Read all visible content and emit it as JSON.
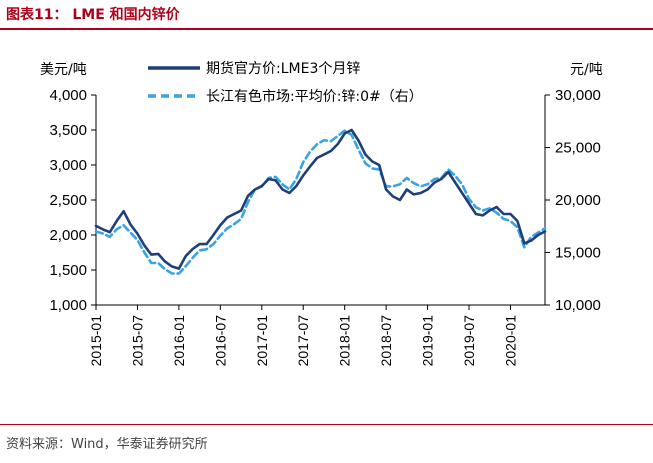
{
  "header": {
    "title": "图表11：  LME 和国内锌价"
  },
  "footer": {
    "source": "资料来源：Wind，华泰证券研究所"
  },
  "chart_data": {
    "type": "line",
    "title": "LME 和国内锌价",
    "left_unit": "美元/吨",
    "right_unit": "元/吨",
    "left_axis": {
      "min": 1000,
      "max": 4000,
      "ticks": [
        "1,000",
        "1,500",
        "2,000",
        "2,500",
        "3,000",
        "3,500",
        "4,000"
      ]
    },
    "right_axis": {
      "min": 10000,
      "max": 30000,
      "ticks": [
        "10,000",
        "15,000",
        "20,000",
        "25,000",
        "30,000"
      ]
    },
    "x_axis": {
      "start": "2015-01",
      "end": "2020-06",
      "ticks": [
        "2015-01",
        "2015-07",
        "2016-01",
        "2016-07",
        "2017-01",
        "2017-07",
        "2018-01",
        "2018-07",
        "2019-01",
        "2019-07",
        "2020-01"
      ]
    },
    "legend": {
      "position": "top-center"
    },
    "series": [
      {
        "name": "期货官方价:LME3个月锌",
        "axis": "left",
        "color": "#1f3f7a",
        "style": "solid",
        "x": [
          "2015-01",
          "2015-02",
          "2015-03",
          "2015-04",
          "2015-05",
          "2015-06",
          "2015-07",
          "2015-08",
          "2015-09",
          "2015-10",
          "2015-11",
          "2015-12",
          "2016-01",
          "2016-02",
          "2016-03",
          "2016-04",
          "2016-05",
          "2016-06",
          "2016-07",
          "2016-08",
          "2016-09",
          "2016-10",
          "2016-11",
          "2016-12",
          "2017-01",
          "2017-02",
          "2017-03",
          "2017-04",
          "2017-05",
          "2017-06",
          "2017-07",
          "2017-08",
          "2017-09",
          "2017-10",
          "2017-11",
          "2017-12",
          "2018-01",
          "2018-02",
          "2018-03",
          "2018-04",
          "2018-05",
          "2018-06",
          "2018-07",
          "2018-08",
          "2018-09",
          "2018-10",
          "2018-11",
          "2018-12",
          "2019-01",
          "2019-02",
          "2019-03",
          "2019-04",
          "2019-05",
          "2019-06",
          "2019-07",
          "2019-08",
          "2019-09",
          "2019-10",
          "2019-11",
          "2019-12",
          "2020-01",
          "2020-02",
          "2020-03",
          "2020-04",
          "2020-05",
          "2020-06"
        ],
        "values": [
          2130,
          2080,
          2040,
          2200,
          2340,
          2150,
          2020,
          1850,
          1720,
          1730,
          1620,
          1550,
          1520,
          1700,
          1800,
          1870,
          1870,
          2000,
          2140,
          2250,
          2300,
          2350,
          2560,
          2650,
          2700,
          2800,
          2780,
          2650,
          2600,
          2700,
          2850,
          2980,
          3100,
          3150,
          3200,
          3300,
          3450,
          3500,
          3350,
          3150,
          3050,
          3000,
          2650,
          2550,
          2500,
          2650,
          2580,
          2600,
          2650,
          2750,
          2800,
          2900,
          2750,
          2600,
          2450,
          2300,
          2280,
          2350,
          2400,
          2300,
          2300,
          2200,
          1880,
          1920,
          2000,
          2050
        ]
      },
      {
        "name": "长江有色市场:平均价:锌:0#（右）",
        "axis": "right",
        "color": "#39a3e4",
        "style": "dashed",
        "x": [
          "2015-01",
          "2015-02",
          "2015-03",
          "2015-04",
          "2015-05",
          "2015-06",
          "2015-07",
          "2015-08",
          "2015-09",
          "2015-10",
          "2015-11",
          "2015-12",
          "2016-01",
          "2016-02",
          "2016-03",
          "2016-04",
          "2016-05",
          "2016-06",
          "2016-07",
          "2016-08",
          "2016-09",
          "2016-10",
          "2016-11",
          "2016-12",
          "2017-01",
          "2017-02",
          "2017-03",
          "2017-04",
          "2017-05",
          "2017-06",
          "2017-07",
          "2017-08",
          "2017-09",
          "2017-10",
          "2017-11",
          "2017-12",
          "2018-01",
          "2018-02",
          "2018-03",
          "2018-04",
          "2018-05",
          "2018-06",
          "2018-07",
          "2018-08",
          "2018-09",
          "2018-10",
          "2018-11",
          "2018-12",
          "2019-01",
          "2019-02",
          "2019-03",
          "2019-04",
          "2019-05",
          "2019-06",
          "2019-07",
          "2019-08",
          "2019-09",
          "2019-10",
          "2019-11",
          "2019-12",
          "2020-01",
          "2020-02",
          "2020-03",
          "2020-04",
          "2020-05",
          "2020-06"
        ],
        "values": [
          17000,
          16800,
          16500,
          17200,
          17600,
          16900,
          16200,
          15000,
          14000,
          14000,
          13400,
          13000,
          13000,
          13700,
          14500,
          15200,
          15300,
          15800,
          16600,
          17300,
          17700,
          18200,
          19800,
          21000,
          21300,
          22100,
          22200,
          21500,
          21000,
          22000,
          23600,
          24600,
          25300,
          25700,
          25600,
          26100,
          26600,
          26200,
          24800,
          23500,
          23000,
          22900,
          21300,
          21300,
          21500,
          22100,
          21600,
          21300,
          21500,
          22000,
          22100,
          22900,
          22300,
          21500,
          20100,
          19300,
          19000,
          19200,
          18800,
          18200,
          18000,
          17400,
          15500,
          16500,
          16900,
          17300
        ]
      }
    ]
  }
}
